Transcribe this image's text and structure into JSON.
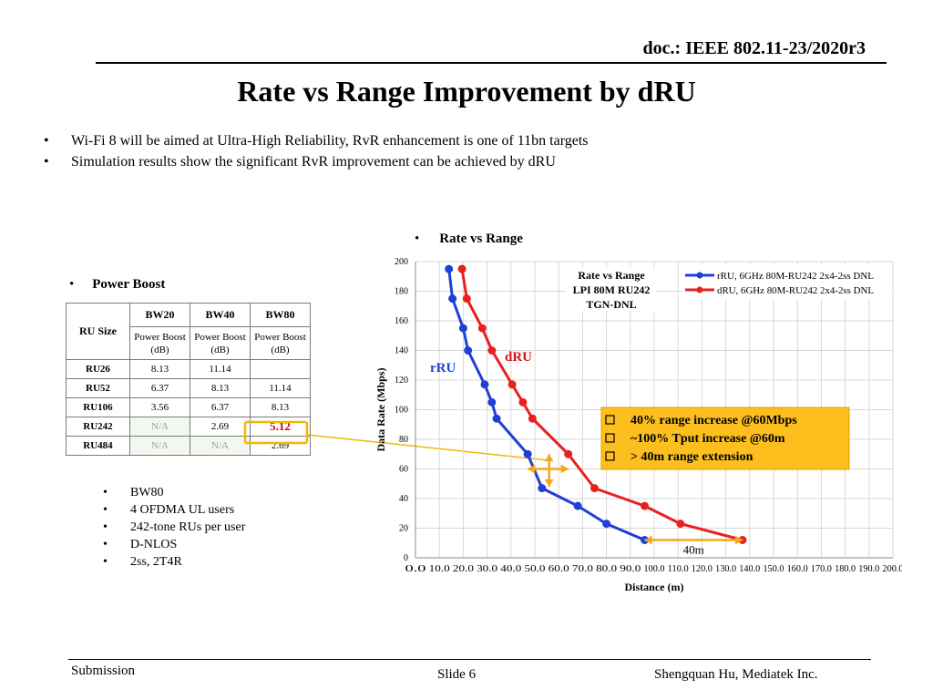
{
  "header": {
    "doc_id": "doc.: IEEE 802.11-23/2020r3",
    "title": "Rate vs Range Improvement by dRU"
  },
  "intro_bullets": [
    "Wi-Fi 8 will be aimed at Ultra-High Reliability, RvR enhancement is one of 11bn targets",
    "Simulation results show the significant RvR improvement can be achieved by dRU"
  ],
  "rvr_heading": "Rate vs Range",
  "power_boost": {
    "heading": "Power Boost",
    "table": {
      "corner": "RU Size",
      "columns": [
        "BW20",
        "BW40",
        "BW80"
      ],
      "sub_header": [
        "Power Boost (dB)",
        "Power Boost (dB)",
        "Power Boost (dB)"
      ],
      "rows": [
        {
          "label": "RU26",
          "cells": [
            "8.13",
            "11.14",
            ""
          ]
        },
        {
          "label": "RU52",
          "cells": [
            "6.37",
            "8.13",
            "11.14"
          ]
        },
        {
          "label": "RU106",
          "cells": [
            "3.56",
            "6.37",
            "8.13"
          ]
        },
        {
          "label": "RU242",
          "cells": [
            "N/A",
            "2.69",
            "5.12"
          ]
        },
        {
          "label": "RU484",
          "cells": [
            "N/A",
            "N/A",
            "2.69"
          ]
        }
      ]
    },
    "conditions": [
      "BW80",
      "4 OFDMA UL users",
      "242-tone RUs per user",
      "D-NLOS",
      "2ss, 2T4R"
    ]
  },
  "chart_data": {
    "type": "line",
    "title": "Rate vs Range\nLPI 80M RU242\nTGN-DNL",
    "xlabel": "Distance (m)",
    "ylabel": "Data Rate (Mbps)",
    "xlim": [
      0,
      200
    ],
    "ylim": [
      0,
      200
    ],
    "x_ticks": [
      "0.0",
      "10.0",
      "20.0",
      "30.0",
      "40.0",
      "50.0",
      "60.0",
      "70.0",
      "80.0",
      "90.0",
      "100.0",
      "110.0",
      "120.0",
      "130.0",
      "140.0",
      "150.0",
      "160.0",
      "170.0",
      "180.0",
      "190.0",
      "200.0"
    ],
    "y_ticks": [
      0,
      20,
      40,
      60,
      80,
      100,
      120,
      140,
      160,
      180,
      200
    ],
    "grid": true,
    "legend_position": "top-right",
    "series": [
      {
        "name": "rRU, 6GHz 80M-RU242 2x4-2ss DNL",
        "color": "#1f3fd6",
        "x": [
          14,
          15.5,
          20,
          22,
          29,
          32,
          34,
          47,
          53,
          68,
          80,
          96
        ],
        "y": [
          195,
          175,
          155,
          140,
          117,
          105,
          94,
          70,
          47,
          35,
          23,
          12
        ]
      },
      {
        "name": "dRU, 6GHz 80M-RU242 2x4-2ss DNL",
        "color": "#e82020",
        "x": [
          19.5,
          21.5,
          28,
          32,
          40.5,
          45,
          49,
          64,
          75,
          96,
          111,
          137
        ],
        "y": [
          195,
          175,
          155,
          140,
          117,
          105,
          94,
          70,
          47,
          35,
          23,
          12
        ]
      }
    ],
    "annotations": {
      "rru_label": "rRU",
      "dru_label": "dRU",
      "range_label": "40m",
      "callout": [
        "40% range increase @60Mbps",
        "~100% Tput increase @60m",
        "> 40m range extension"
      ]
    }
  },
  "footer": {
    "left": "Submission",
    "center": "Slide 6",
    "right": "Shengquan Hu, Mediatek Inc."
  }
}
